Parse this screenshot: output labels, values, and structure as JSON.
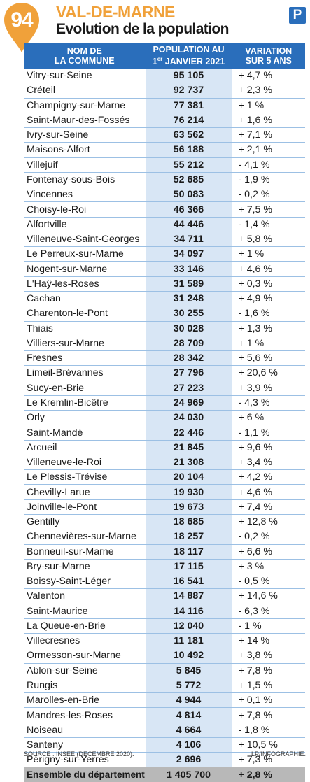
{
  "header": {
    "badge": "94",
    "department": "VAL-DE-MARNE",
    "subtitle": "Evolution de la population",
    "logo": "P"
  },
  "colors": {
    "accent_orange": "#f0a13a",
    "header_blue": "#2a6ebb",
    "column_tint": "#d8e6f5",
    "total_grey": "#b8b8b8"
  },
  "table": {
    "col_commune_line1": "NOM DE",
    "col_commune_line2": "LA COMMUNE",
    "col_pop_line1": "POPULATION AU",
    "col_pop_line2_pre": "1",
    "col_pop_line2_sup": "er",
    "col_pop_line2_post": " JANVIER 2021",
    "col_var_line1": "VARIATION",
    "col_var_line2": "SUR 5 ANS",
    "total_label": "Ensemble du département",
    "total_population": "1 405 700",
    "total_variation": "+ 2,8 %"
  },
  "footer": {
    "source": "SOURCE : INSEE (DÉCEMBRE 2020).",
    "credit": "LP/INFOGRAPHIE."
  },
  "chart_data": {
    "type": "table",
    "columns": [
      "NOM DE LA COMMUNE",
      "POPULATION AU 1er JANVIER 2021",
      "VARIATION SUR 5 ANS"
    ],
    "rows": [
      [
        "Vitry-sur-Seine",
        "95 105",
        "+ 4,7 %"
      ],
      [
        "Créteil",
        "92 737",
        "+ 2,3 %"
      ],
      [
        "Champigny-sur-Marne",
        "77 381",
        "+ 1 %"
      ],
      [
        "Saint-Maur-des-Fossés",
        "76 214",
        "+ 1,6 %"
      ],
      [
        "Ivry-sur-Seine",
        "63 562",
        "+ 7,1 %"
      ],
      [
        "Maisons-Alfort",
        "56 188",
        "+ 2,1 %"
      ],
      [
        "Villejuif",
        "55 212",
        "- 4,1 %"
      ],
      [
        "Fontenay-sous-Bois",
        "52 685",
        "- 1,9 %"
      ],
      [
        "Vincennes",
        "50 083",
        "- 0,2 %"
      ],
      [
        "Choisy-le-Roi",
        "46 366",
        "+ 7,5 %"
      ],
      [
        "Alfortville",
        "44 446",
        "- 1,4 %"
      ],
      [
        "Villeneuve-Saint-Georges",
        "34 711",
        "+ 5,8 %"
      ],
      [
        "Le Perreux-sur-Marne",
        "34 097",
        "+ 1 %"
      ],
      [
        "Nogent-sur-Marne",
        "33 146",
        "+ 4,6 %"
      ],
      [
        "L'Haÿ-les-Roses",
        "31 589",
        "+ 0,3 %"
      ],
      [
        "Cachan",
        "31 248",
        "+ 4,9 %"
      ],
      [
        "Charenton-le-Pont",
        "30 255",
        "- 1,6 %"
      ],
      [
        "Thiais",
        "30 028",
        "+ 1,3 %"
      ],
      [
        "Villiers-sur-Marne",
        "28 709",
        "+ 1 %"
      ],
      [
        "Fresnes",
        "28 342",
        "+ 5,6 %"
      ],
      [
        "Limeil-Brévannes",
        "27 796",
        "+ 20,6 %"
      ],
      [
        "Sucy-en-Brie",
        "27 223",
        "+ 3,9 %"
      ],
      [
        "Le Kremlin-Bicêtre",
        "24 969",
        "- 4,3 %"
      ],
      [
        "Orly",
        "24 030",
        "+ 6 %"
      ],
      [
        "Saint-Mandé",
        "22 446",
        "- 1,1 %"
      ],
      [
        "Arcueil",
        "21 845",
        "+ 9,6 %"
      ],
      [
        "Villeneuve-le-Roi",
        "21 308",
        "+ 3,4 %"
      ],
      [
        "Le Plessis-Trévise",
        "20 104",
        "+ 4,2 %"
      ],
      [
        "Chevilly-Larue",
        "19 930",
        "+ 4,6 %"
      ],
      [
        "Joinville-le-Pont",
        "19 673",
        "+ 7,4 %"
      ],
      [
        "Gentilly",
        "18 685",
        "+ 12,8 %"
      ],
      [
        "Chennevières-sur-Marne",
        "18 257",
        "- 0,2 %"
      ],
      [
        "Bonneuil-sur-Marne",
        "18 117",
        "+ 6,6 %"
      ],
      [
        "Bry-sur-Marne",
        "17 115",
        "+ 3 %"
      ],
      [
        "Boissy-Saint-Léger",
        "16 541",
        "- 0,5 %"
      ],
      [
        "Valenton",
        "14 887",
        "+ 14,6 %"
      ],
      [
        "Saint-Maurice",
        "14 116",
        "- 6,3 %"
      ],
      [
        "La Queue-en-Brie",
        "12 040",
        "- 1 %"
      ],
      [
        "Villecresnes",
        "11 181",
        "+ 14 %"
      ],
      [
        "Ormesson-sur-Marne",
        "10 492",
        "+ 3,8 %"
      ],
      [
        "Ablon-sur-Seine",
        "5 845",
        "+ 7,8 %"
      ],
      [
        "Rungis",
        "5 772",
        "+ 1,5 %"
      ],
      [
        "Marolles-en-Brie",
        "4 944",
        "+ 0,1 %"
      ],
      [
        "Mandres-les-Roses",
        "4 814",
        "+ 7,8 %"
      ],
      [
        "Noiseau",
        "4 664",
        "- 1,8 %"
      ],
      [
        "Santeny",
        "4 106",
        "+ 10,5 %"
      ],
      [
        "Périgny-sur-Yerres",
        "2 696",
        "+ 7,3 %"
      ]
    ]
  }
}
